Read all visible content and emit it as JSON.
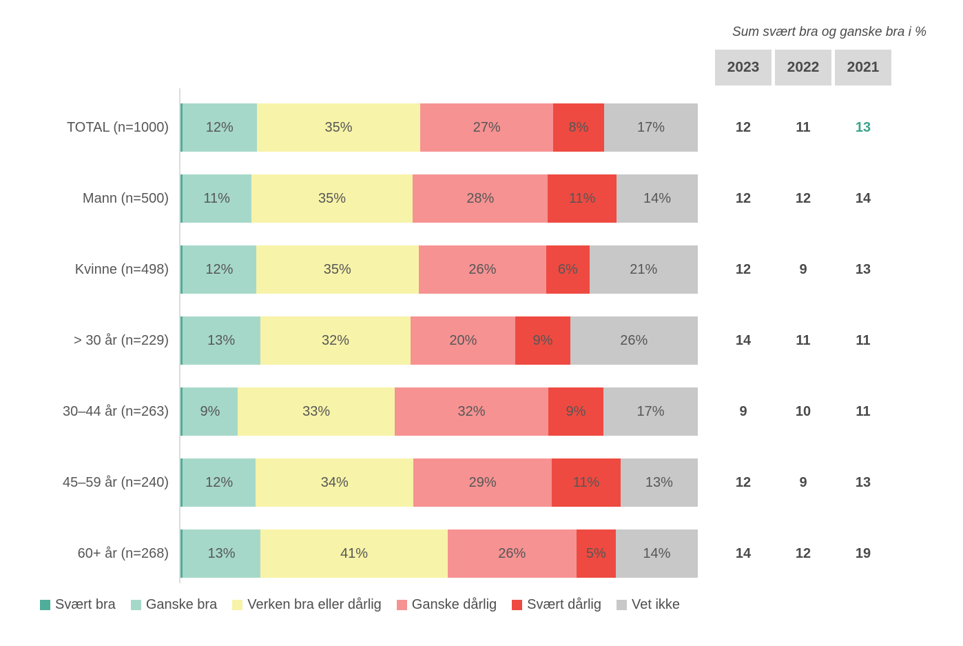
{
  "summary": {
    "title": "Sum svært bra og ganske bra i %",
    "columns": [
      "2023",
      "2022",
      "2021"
    ],
    "values": [
      [
        12,
        11,
        13
      ],
      [
        12,
        12,
        14
      ],
      [
        12,
        9,
        13
      ],
      [
        14,
        11,
        11
      ],
      [
        9,
        10,
        11
      ],
      [
        12,
        9,
        13
      ],
      [
        14,
        12,
        19
      ]
    ],
    "highlight_cell": {
      "row": 0,
      "col": 2
    },
    "highlight_color": "#3aa48e",
    "header_bg": "#d9d9d9",
    "text_color": "#4a4a4a"
  },
  "chart_data": {
    "type": "bar",
    "orientation": "horizontal",
    "stacked": true,
    "unit": "%",
    "xlim": [
      0,
      100
    ],
    "grid": false,
    "legend_position": "bottom",
    "categories": [
      "TOTAL (n=1000)",
      "Mann (n=500)",
      "Kvinne (n=498)",
      "> 30 år (n=229)",
      "30–44 år (n=263)",
      "45–59 år (n=240)",
      "60+ år (n=268)"
    ],
    "series": [
      {
        "name": "Svært bra",
        "key": "svaert-bra",
        "color": "#4fae9a",
        "values": [
          0.5,
          0.5,
          0.5,
          0.5,
          0.5,
          0.5,
          0.5
        ]
      },
      {
        "name": "Ganske bra",
        "key": "ganske-bra",
        "color": "#a6d8c9",
        "values": [
          12,
          11,
          12,
          13,
          9,
          12,
          13
        ]
      },
      {
        "name": "Verken bra eller dårlig",
        "key": "verken-bra",
        "color": "#f7f3a8",
        "values": [
          35,
          35,
          35,
          32,
          33,
          34,
          41
        ]
      },
      {
        "name": "Ganske dårlig",
        "key": "ganske-daarlig",
        "color": "#f69292",
        "values": [
          27,
          28,
          26,
          20,
          32,
          29,
          26
        ]
      },
      {
        "name": "Svært dårlig",
        "key": "svaert-daarlig",
        "color": "#ee4a41",
        "values": [
          8,
          11,
          6,
          9,
          9,
          11,
          5
        ]
      },
      {
        "name": "Vet ikke",
        "key": "vet-ikke",
        "color": "#c8c8c8",
        "values": [
          17,
          14,
          21,
          26,
          17,
          13,
          14
        ]
      }
    ],
    "notes": "Svært bra is drawn as a thin unlabeled sliver at the start of each bar; segment labels show value + %"
  }
}
